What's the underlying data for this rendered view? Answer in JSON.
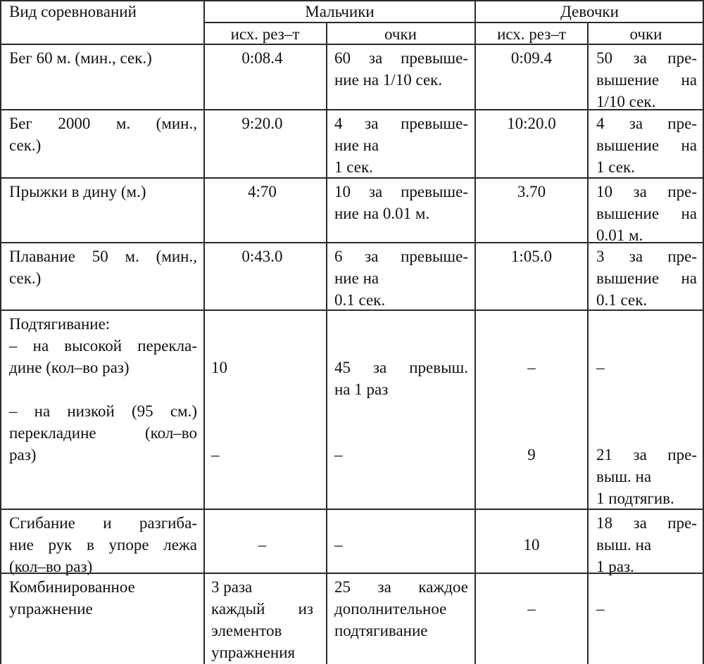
{
  "header": {
    "activity": "Вид соревнований",
    "boys": "Мальчики",
    "girls": "Девочки",
    "initial_result": "исх. рез–т",
    "points": "очки"
  },
  "rows": [
    {
      "name": [
        "Бег 60 м. (мин., сек.)"
      ],
      "boys_result": [
        "0:08.4"
      ],
      "boys_points": [
        "60 за превыше-",
        "ние на 1/10 сек."
      ],
      "girls_result": [
        "0:09.4"
      ],
      "girls_points": [
        "50 за пре-",
        "вышение на",
        "1/10 сек."
      ]
    },
    {
      "name": [
        "Бег 2000 м. (мин.,",
        "сек.)"
      ],
      "boys_result": [
        "9:20.0"
      ],
      "boys_points": [
        "4 за превыше-",
        "ние на",
        "1 сек."
      ],
      "girls_result": [
        "10:20.0"
      ],
      "girls_points": [
        "4 за пре-",
        "вышение на",
        "1 сек."
      ]
    },
    {
      "name": [
        "Прыжки в дину (м.)"
      ],
      "boys_result": [
        "4:70"
      ],
      "boys_points": [
        "10 за превыше-",
        "ние на 0.01 м."
      ],
      "girls_result": [
        "3.70"
      ],
      "girls_points": [
        "10 за пре-",
        "вышение на",
        "0.01 м."
      ]
    },
    {
      "name": [
        "Плавание 50 м. (мин.,",
        "сек.)"
      ],
      "boys_result": [
        "0:43.0"
      ],
      "boys_points": [
        "6 за превыше-",
        "ние на",
        "0.1 сек."
      ],
      "girls_result": [
        "1:05.0"
      ],
      "girls_points": [
        "3 за пре-",
        "вышение на",
        "0.1 сек."
      ]
    },
    {
      "name": [
        "Подтягивание:",
        "– на высокой перекла-",
        "дине (кол–во раз)",
        "",
        "– на низкой (95 см.)",
        "перекладине (кол–во",
        "раз)"
      ],
      "boys_result": [
        "",
        "",
        "10",
        "",
        "",
        "",
        "–"
      ],
      "boys_points": [
        "",
        "",
        "45 за превыш.",
        "на 1 раз",
        "",
        "",
        "–"
      ],
      "girls_result": [
        "",
        "",
        "–",
        "",
        "",
        "",
        "9"
      ],
      "girls_points": [
        "",
        "",
        "–",
        "",
        "",
        "",
        "21 за пре-",
        "выш. на",
        "1 подтягив."
      ]
    },
    {
      "name": [
        "Сгибание и разгиба-",
        "ние рук в упоре лежа",
        "(кол–во раз)"
      ],
      "boys_result": [
        "",
        "–"
      ],
      "boys_points": [
        "",
        "–"
      ],
      "girls_result": [
        "",
        "10"
      ],
      "girls_points": [
        "18 за пре-",
        "выш. на",
        "1 раз."
      ]
    },
    {
      "name": [
        "Комбинированное",
        "упражнение"
      ],
      "boys_result": [
        "3 раза",
        "каждый из",
        "элементов",
        "упражнения"
      ],
      "boys_points": [
        "25 за каждое",
        "дополнительное",
        "подтягивание"
      ],
      "girls_result": [
        "",
        "–"
      ],
      "girls_points": [
        "",
        "–"
      ]
    }
  ]
}
